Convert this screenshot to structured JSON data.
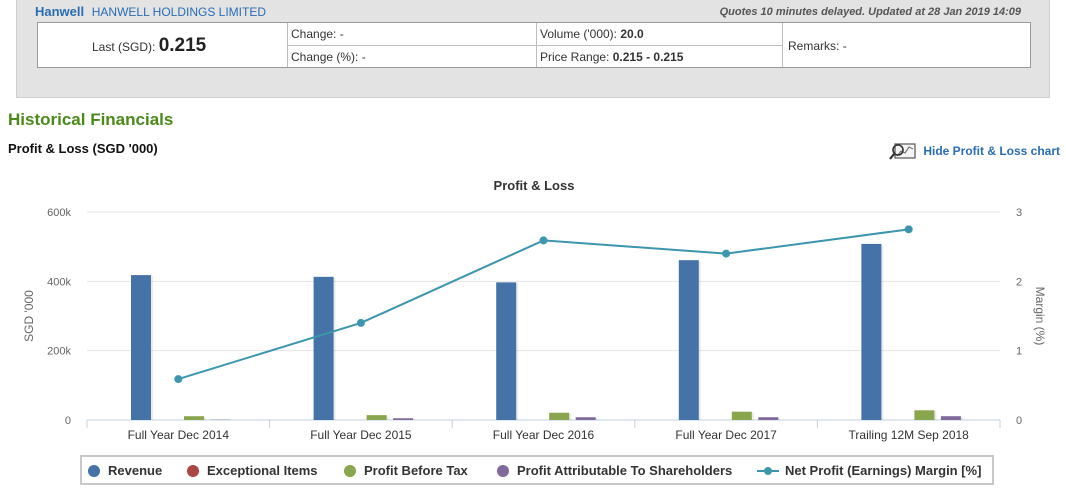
{
  "quote": {
    "company_short": "Hanwell",
    "company_full": "HANWELL HOLDINGS LIMITED",
    "delay_note": "Quotes 10 minutes delayed. Updated at 28 Jan 2019 14:09",
    "last_label": "Last (SGD):",
    "last_value": "0.215",
    "change_label": "Change:",
    "change_value": "-",
    "change_pct_label": "Change (%):",
    "change_pct_value": "-",
    "volume_label": "Volume ('000):",
    "volume_value": "20.0",
    "price_range_label": "Price Range:",
    "price_range_value": "0.215 - 0.215",
    "remarks_label": "Remarks:",
    "remarks_value": "-"
  },
  "section_title": "Historical Financials",
  "pl_subtitle": "Profit & Loss (SGD '000)",
  "hide_chart_label": "Hide Profit & Loss chart",
  "chart_data": {
    "type": "bar",
    "title": "Profit & Loss",
    "ylabel": "SGD '000",
    "y2label": "Margin (%)",
    "ylim": [
      0,
      600000
    ],
    "y2lim": [
      0,
      3
    ],
    "yticks": [
      "0",
      "200k",
      "400k",
      "600k"
    ],
    "y2ticks": [
      "0",
      "1",
      "2",
      "3"
    ],
    "categories": [
      "Full Year Dec 2014",
      "Full Year Dec 2015",
      "Full Year Dec 2016",
      "Full Year Dec 2017",
      "Trailing 12M Sep 2018"
    ],
    "grid": true,
    "legend_position": "bottom",
    "series": [
      {
        "name": "Revenue",
        "kind": "bar",
        "color": "#4572a7",
        "values": [
          418000,
          413000,
          397000,
          461000,
          508000
        ]
      },
      {
        "name": "Exceptional Items",
        "kind": "bar",
        "color": "#aa4643",
        "values": [
          0,
          0,
          0,
          0,
          0
        ]
      },
      {
        "name": "Profit Before Tax",
        "kind": "bar",
        "color": "#89a54e",
        "values": [
          11000,
          14000,
          21000,
          24000,
          28000
        ]
      },
      {
        "name": "Profit Attributable To Shareholders",
        "kind": "bar",
        "color": "#80699b",
        "values": [
          1000,
          5000,
          8000,
          8000,
          11000
        ]
      },
      {
        "name": "Net Profit (Earnings) Margin [%]",
        "kind": "line",
        "axis": "right",
        "color": "#3d96ae",
        "values": [
          0.59,
          1.4,
          2.59,
          2.4,
          2.75
        ]
      }
    ]
  }
}
